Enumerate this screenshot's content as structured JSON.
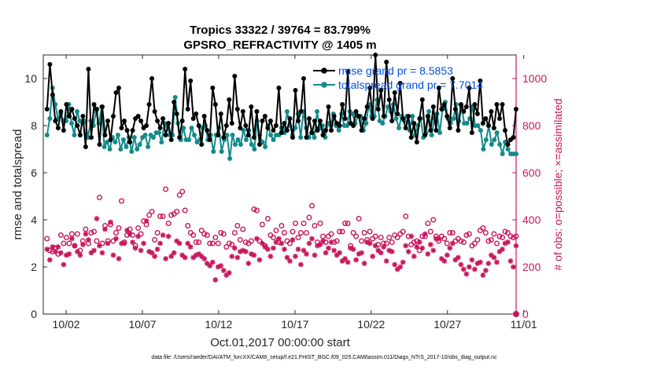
{
  "chart_data": {
    "type": "line",
    "title": "Tropics 33322 / 39764 = 83.799%",
    "subtitle": "GPSRO_REFRACTIVITY @ 1405 m",
    "xlabel": "Oct.01,2017 00:00:00 start",
    "ylabel": "rmse and totalspread",
    "ylabel_right": "# of obs: o=possible; ×=assimilated",
    "footer": "data file: /Users/raeder/DAI/ATM_forcXX/CAM6_setup/f.e21.FHIST_BGC.f09_025.CAM6assim.011/Diags_NTrS_2017-10/obs_diag_output.nc",
    "xlim": [
      0.5,
      31.5
    ],
    "ylim": [
      0,
      11
    ],
    "ylim_right": [
      0,
      1100
    ],
    "x_ticks": [
      2,
      7,
      12,
      17,
      22,
      27,
      32
    ],
    "x_tick_labels": [
      "10/02",
      "10/07",
      "10/12",
      "10/17",
      "10/22",
      "10/27",
      "11/01"
    ],
    "y_ticks": [
      0,
      2,
      4,
      6,
      8,
      10
    ],
    "y_ticks_right": [
      0,
      200,
      400,
      600,
      800,
      1000
    ],
    "colors": {
      "rmse": "#000000",
      "spread": "#148a8a",
      "obs": "#c8175d",
      "legend_text": "#0050e6"
    },
    "series": [
      {
        "name": "rmse grand pr = 8.5853",
        "axis": "left",
        "values": [
          8.7,
          10.6,
          9.3,
          8.2,
          7.9,
          8.6,
          7.8,
          8.9,
          8.4,
          8.7,
          8.3,
          8.0,
          7.6,
          8.4,
          7.1,
          10.4,
          7.5,
          8.9,
          8.7,
          7.2,
          8.8,
          7.6,
          8.2,
          7.4,
          8.4,
          9.4,
          9.6,
          7.9,
          8.2,
          7.8,
          7.3,
          7.8,
          8.3,
          8.4,
          8.2,
          7.9,
          8.0,
          8.9,
          10.0,
          8.6,
          8.2,
          7.9,
          8.3,
          7.6,
          8.1,
          7.4,
          9.0,
          8.5,
          7.5,
          8.2,
          10.4,
          8.7,
          9.9,
          8.3,
          8.5,
          8.0,
          7.2,
          8.4,
          7.8,
          7.4,
          9.6,
          8.9,
          7.6,
          8.5,
          7.5,
          8.0,
          9.1,
          8.1,
          10.1,
          8.7,
          7.9,
          8.6,
          8.0,
          7.6,
          8.8,
          7.5,
          8.6,
          7.2,
          8.2,
          8.4,
          7.9,
          8.2,
          7.8,
          8.0,
          9.6,
          7.7,
          8.1,
          7.8,
          8.3,
          7.5,
          9.5,
          8.2,
          8.6,
          10.0,
          7.5,
          8.3,
          7.7,
          8.2,
          7.8,
          8.2,
          7.6,
          7.8,
          8.8,
          7.8,
          8.4,
          8.1,
          8.0,
          8.9,
          8.3,
          10.3,
          8.1,
          8.0,
          8.6,
          8.4,
          7.8,
          8.3,
          8.8,
          9.6,
          8.3,
          11.0,
          8.7,
          9.5,
          8.4,
          10.7,
          9.1,
          8.2,
          9.4,
          8.5,
          9.8,
          8.3,
          7.9,
          8.4,
          7.5,
          8.1,
          7.3,
          8.3,
          9.1,
          7.6,
          8.4,
          7.8,
          8.8,
          7.8,
          9.6,
          8.7,
          8.9,
          8.4,
          7.9,
          10.0,
          8.7,
          7.8,
          8.9,
          8.6,
          8.8,
          9.6,
          7.7,
          8.9,
          8.5,
          9.9,
          8.1,
          8.3,
          8.0,
          8.6,
          7.9,
          8.9,
          8.3,
          8.9,
          7.8,
          7.2,
          7.4,
          7.5,
          8.7
        ]
      },
      {
        "name": "totalspread grand pr = 7.7014",
        "axis": "left",
        "values": [
          7.6,
          8.3,
          9.6,
          8.9,
          8.3,
          8.5,
          8.2,
          8.2,
          8.9,
          8.1,
          7.6,
          8.6,
          8.2,
          8.1,
          8.2,
          7.5,
          8.2,
          8.0,
          8.6,
          8.1,
          8.8,
          7.1,
          7.3,
          7.0,
          7.5,
          7.3,
          7.6,
          7.0,
          7.4,
          7.1,
          7.5,
          6.9,
          7.5,
          7.0,
          7.2,
          7.5,
          7.6,
          7.1,
          7.6,
          7.5,
          7.7,
          7.7,
          7.3,
          8.1,
          8.0,
          7.6,
          7.6,
          9.2,
          8.1,
          7.4,
          7.9,
          7.4,
          7.4,
          7.9,
          7.6,
          7.3,
          7.4,
          7.9,
          8.0,
          7.4,
          7.6,
          6.9,
          7.6,
          7.9,
          6.9,
          7.4,
          7.6,
          6.6,
          7.6,
          7.2,
          7.4,
          7.2,
          7.8,
          7.4,
          7.8,
          7.2,
          7.0,
          8.2,
          7.6,
          7.3,
          7.1,
          8.0,
          7.6,
          7.4,
          7.6,
          7.6,
          7.9,
          7.7,
          8.6,
          8.0,
          7.6,
          7.9,
          8.5,
          7.5,
          8.6,
          7.9,
          7.5,
          7.7,
          7.5,
          8.6,
          7.9,
          8.0,
          7.5,
          8.1,
          8.0,
          8.5,
          8.0,
          7.8,
          8.5,
          8.0,
          8.0,
          8.6,
          8.5,
          8.1,
          8.4,
          8.4,
          7.8,
          8.1,
          8.9,
          8.4,
          8.4,
          9.1,
          8.2,
          8.1,
          8.4,
          8.8,
          8.6,
          8.9,
          8.3,
          7.9,
          8.4,
          8.2,
          8.4,
          7.8,
          8.4,
          7.6,
          8.0,
          8.3,
          7.5,
          7.7,
          8.6,
          7.6,
          8.3,
          8.5,
          7.7,
          8.7,
          9.0,
          8.3,
          8.1,
          8.3,
          8.9,
          8.2,
          8.8,
          8.1,
          8.1,
          8.3,
          8.8,
          8.0,
          8.0,
          7.8,
          7.0,
          7.4,
          8.0,
          7.2,
          7.4,
          7.7,
          7.2,
          6.8,
          7.3,
          7.0,
          6.8,
          6.8,
          6.8
        ]
      },
      {
        "name": "obs possible",
        "axis": "right",
        "values": [
          320,
          270,
          265,
          280,
          255,
          335,
          300,
          325,
          300,
          340,
          290,
          340,
          270,
          310,
          360,
          300,
          345,
          350,
          310,
          495,
          300,
          375,
          310,
          380,
          310,
          345,
          365,
          480,
          305,
          335,
          360,
          335,
          290,
          365,
          340,
          395,
          380,
          420,
          435,
          315,
          345,
          415,
          415,
          530,
          385,
          420,
          425,
          435,
          505,
          520,
          440,
          375,
          345,
          335,
          305,
          305,
          355,
          340,
          335,
          300,
          300,
          325,
          300,
          345,
          340,
          285,
          300,
          295,
          345,
          375,
          315,
          360,
          305,
          300,
          310,
          445,
          440,
          310,
          380,
          290,
          405,
          335,
          325,
          355,
          305,
          375,
          345,
          310,
          300,
          350,
          385,
          325,
          345,
          385,
          345,
          410,
          460,
          375,
          305,
          385,
          330,
          305,
          330,
          340,
          305,
          310,
          350,
          350,
          385,
          385,
          290,
          345,
          330,
          405,
          310,
          345,
          315,
          350,
          320,
          330,
          295,
          325,
          300,
          300,
          325,
          305,
          335,
          325,
          340,
          350,
          415,
          330,
          295,
          305,
          310,
          270,
          330,
          330,
          385,
          350,
          400,
          330,
          310,
          330,
          320,
          300,
          345,
          345,
          310,
          320,
          310,
          305,
          335,
          340,
          290,
          300,
          315,
          355,
          365,
          345,
          310,
          315,
          340,
          300,
          330,
          325,
          350,
          345,
          330,
          325,
          330
        ]
      },
      {
        "name": "obs assimilated",
        "axis": "right",
        "values": [
          275,
          230,
          285,
          265,
          285,
          260,
          210,
          250,
          255,
          320,
          290,
          265,
          250,
          295,
          340,
          315,
          260,
          270,
          405,
          290,
          260,
          360,
          300,
          390,
          250,
          320,
          235,
          300,
          300,
          355,
          340,
          305,
          280,
          330,
          270,
          300,
          395,
          265,
          260,
          245,
          275,
          300,
          335,
          235,
          330,
          245,
          260,
          310,
          300,
          250,
          240,
          300,
          285,
          240,
          250,
          255,
          245,
          235,
          215,
          205,
          220,
          145,
          200,
          205,
          185,
          165,
          175,
          245,
          280,
          240,
          265,
          270,
          265,
          215,
          255,
          250,
          320,
          230,
          300,
          285,
          275,
          245,
          280,
          305,
          320,
          300,
          275,
          240,
          225,
          315,
          245,
          275,
          210,
          270,
          255,
          300,
          320,
          250,
          290,
          295,
          310,
          260,
          280,
          305,
          270,
          250,
          260,
          225,
          235,
          220,
          280,
          275,
          230,
          255,
          260,
          215,
          305,
          300,
          245,
          290,
          270,
          260,
          285,
          225,
          270,
          265,
          210,
          190,
          200,
          220,
          290,
          265,
          330,
          245,
          285,
          305,
          280,
          340,
          255,
          295,
          270,
          320,
          320,
          235,
          225,
          250,
          280,
          300,
          230,
          240,
          210,
          190,
          170,
          200,
          230,
          190,
          215,
          220,
          165,
          185,
          215,
          250,
          240,
          220,
          265,
          275,
          300,
          305,
          225,
          200,
          290
        ]
      }
    ]
  }
}
